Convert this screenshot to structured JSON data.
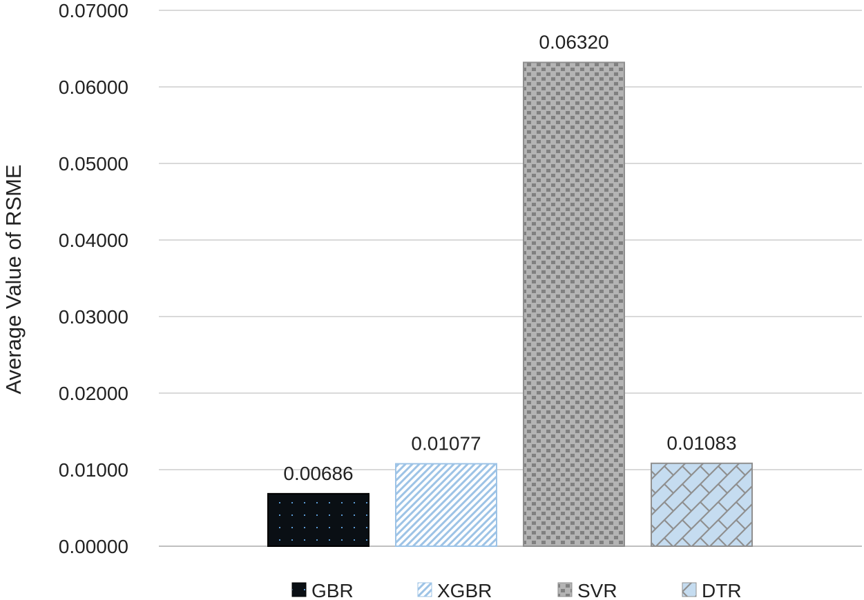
{
  "chart_data": {
    "type": "bar",
    "title": "",
    "xlabel": "",
    "ylabel": "Average Value of RSME",
    "ylim": [
      0,
      0.07
    ],
    "yticks": [
      "0.00000",
      "0.01000",
      "0.02000",
      "0.03000",
      "0.04000",
      "0.05000",
      "0.06000",
      "0.07000"
    ],
    "grid": "horizontal",
    "legend_position": "bottom",
    "series": [
      {
        "name": "GBR",
        "value": 0.00686,
        "label": "0.00686",
        "pattern": "dots",
        "fill": "#0a0f14",
        "accent": "#5b9bd5"
      },
      {
        "name": "XGBR",
        "value": 0.01077,
        "label": "0.01077",
        "pattern": "diagonal",
        "fill": "#ffffff",
        "accent": "#9dc3e6"
      },
      {
        "name": "SVR",
        "value": 0.0632,
        "label": "0.06320",
        "pattern": "checker",
        "fill": "#b4b4b4",
        "accent": "#808080"
      },
      {
        "name": "DTR",
        "value": 0.01083,
        "label": "0.01083",
        "pattern": "lattice",
        "fill": "#c5dcf0",
        "accent": "#8f8f8f"
      }
    ]
  }
}
